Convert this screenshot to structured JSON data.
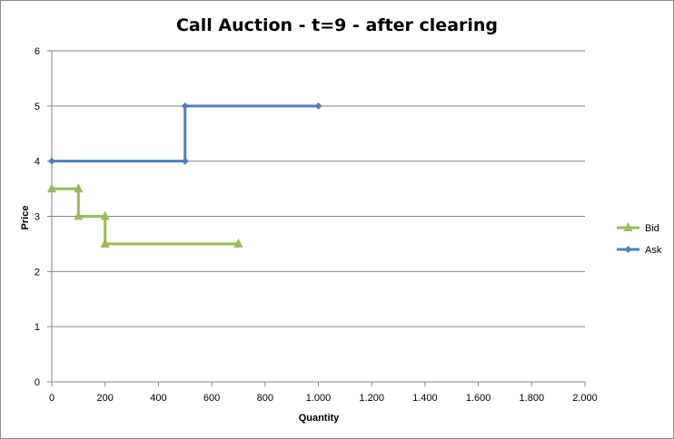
{
  "chart_data": {
    "type": "line",
    "title": "Call Auction - t=9 - after clearing",
    "xlabel": "Quantity",
    "ylabel": "Price",
    "xlim": [
      0,
      2000
    ],
    "ylim": [
      0,
      6
    ],
    "x_ticks": [
      {
        "value": 0,
        "label": "0"
      },
      {
        "value": 200,
        "label": "200"
      },
      {
        "value": 400,
        "label": "400"
      },
      {
        "value": 600,
        "label": "600"
      },
      {
        "value": 800,
        "label": "800"
      },
      {
        "value": 1000,
        "label": "1.000"
      },
      {
        "value": 1200,
        "label": "1.200"
      },
      {
        "value": 1400,
        "label": "1.400"
      },
      {
        "value": 1600,
        "label": "1.600"
      },
      {
        "value": 1800,
        "label": "1.800"
      },
      {
        "value": 2000,
        "label": "2.000"
      }
    ],
    "y_ticks": [
      {
        "value": 0,
        "label": "0"
      },
      {
        "value": 1,
        "label": "1"
      },
      {
        "value": 2,
        "label": "2"
      },
      {
        "value": 3,
        "label": "3"
      },
      {
        "value": 4,
        "label": "4"
      },
      {
        "value": 5,
        "label": "5"
      },
      {
        "value": 6,
        "label": "6"
      }
    ],
    "grid": "horizontal",
    "legend_position": "right",
    "series": [
      {
        "name": "Bid",
        "color": "#9bbb59",
        "marker": "triangle",
        "points": [
          [
            0,
            3.5
          ],
          [
            100,
            3.5
          ],
          [
            100,
            3
          ],
          [
            200,
            3
          ],
          [
            200,
            2.5
          ],
          [
            700,
            2.5
          ]
        ]
      },
      {
        "name": "Ask",
        "color": "#4f81bd",
        "marker": "diamond",
        "points": [
          [
            0,
            4
          ],
          [
            500,
            4
          ],
          [
            500,
            5
          ],
          [
            1000,
            5
          ]
        ]
      }
    ]
  }
}
